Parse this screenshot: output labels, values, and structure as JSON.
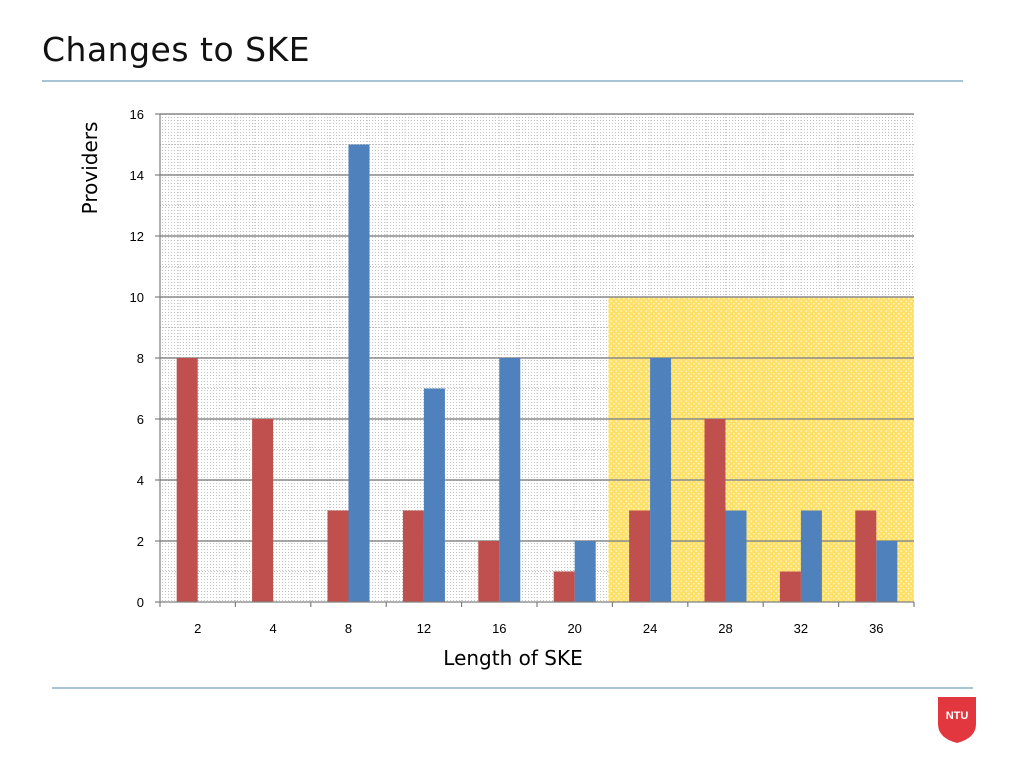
{
  "slide": {
    "title": "Changes to SKE",
    "rule_color": "#a9c4d6"
  },
  "logo": {
    "text": "NTU",
    "color": "#e2373f"
  },
  "chart_data": {
    "type": "bar",
    "xlabel": "Length of SKE",
    "ylabel": "Providers",
    "categories": [
      "2",
      "4",
      "8",
      "12",
      "16",
      "20",
      "24",
      "28",
      "32",
      "36"
    ],
    "ylim": [
      0,
      16
    ],
    "yticks": [
      0,
      2,
      4,
      6,
      8,
      10,
      12,
      14,
      16
    ],
    "grid": true,
    "legend": "none",
    "series": [
      {
        "color": "#c0504d",
        "values": [
          8,
          6,
          3,
          3,
          2,
          1,
          3,
          6,
          1,
          3
        ]
      },
      {
        "color": "#4f81bd",
        "values": [
          0,
          0,
          15,
          7,
          8,
          2,
          8,
          3,
          3,
          2
        ]
      }
    ],
    "highlight": {
      "from_category": "24",
      "to_category": "36",
      "y_top": 10,
      "color": "#ffe066"
    }
  }
}
